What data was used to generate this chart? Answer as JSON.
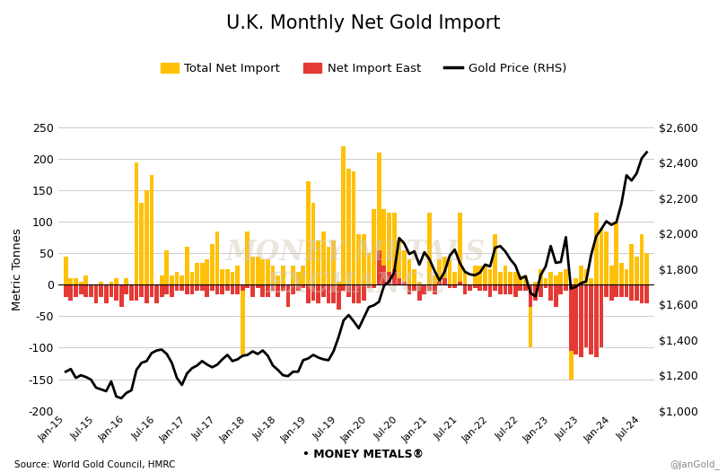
{
  "title": "U.K. Monthly Net Gold Import",
  "ylabel_left": "Metric Tonnes",
  "source_text": "Source: World Gold Council, HMRC",
  "watermark_text": "@JanGold_",
  "legend_labels": [
    "Total Net Import",
    "Net Import East",
    "Gold Price (RHS)"
  ],
  "bar_color_total": "#FFC107",
  "bar_color_east": "#E53935",
  "line_color": "#000000",
  "background_color": "#FFFFFF",
  "ylim_left": [
    -200,
    250
  ],
  "ylim_right": [
    1000,
    2600
  ],
  "yticks_left": [
    -200,
    -150,
    -100,
    -50,
    0,
    50,
    100,
    150,
    200,
    250
  ],
  "yticks_right": [
    1000,
    1200,
    1400,
    1600,
    1800,
    2000,
    2200,
    2400,
    2600
  ],
  "total_net_import": [
    45,
    10,
    10,
    5,
    15,
    -5,
    -5,
    5,
    -10,
    5,
    10,
    -5,
    10,
    -20,
    195,
    130,
    150,
    175,
    -10,
    15,
    55,
    15,
    20,
    15,
    60,
    20,
    35,
    35,
    40,
    65,
    85,
    25,
    25,
    20,
    30,
    -110,
    85,
    45,
    45,
    40,
    40,
    30,
    15,
    30,
    -30,
    30,
    20,
    30,
    165,
    130,
    70,
    85,
    60,
    70,
    5,
    220,
    185,
    180,
    80,
    80,
    50,
    120,
    210,
    120,
    115,
    115,
    70,
    55,
    40,
    25,
    5,
    -10,
    115,
    15,
    40,
    45,
    40,
    20,
    115,
    20,
    -10,
    30,
    30,
    30,
    25,
    80,
    20,
    30,
    20,
    20,
    15,
    15,
    -100,
    5,
    25,
    10,
    20,
    15,
    20,
    25,
    -150,
    10,
    30,
    25,
    10,
    115,
    90,
    85,
    30,
    100,
    35,
    25,
    65,
    45,
    80,
    50
  ],
  "east_net_import": [
    -20,
    -25,
    -20,
    -15,
    -20,
    -20,
    -30,
    -20,
    -30,
    -20,
    -25,
    -35,
    -15,
    -25,
    -25,
    -20,
    -30,
    -20,
    -30,
    -20,
    -15,
    -20,
    -10,
    -10,
    -15,
    -15,
    -10,
    -10,
    -20,
    -10,
    -15,
    -15,
    -10,
    -15,
    -15,
    -10,
    -5,
    -20,
    -5,
    -20,
    -20,
    -10,
    -20,
    -10,
    -35,
    -15,
    -10,
    -5,
    -30,
    -25,
    -30,
    -20,
    -30,
    -30,
    -40,
    -10,
    -20,
    -30,
    -30,
    -25,
    -5,
    -5,
    55,
    30,
    20,
    25,
    10,
    5,
    -15,
    -10,
    -25,
    -15,
    -10,
    -15,
    5,
    10,
    -5,
    -5,
    5,
    -15,
    -10,
    -5,
    -10,
    -10,
    -20,
    -10,
    -15,
    -15,
    -15,
    -20,
    -10,
    -10,
    -35,
    -25,
    -20,
    -5,
    -25,
    -35,
    -15,
    -10,
    -105,
    -110,
    -115,
    -100,
    -110,
    -115,
    -100,
    -20,
    -25,
    -20,
    -20,
    -20,
    -25,
    -25,
    -30,
    -30
  ],
  "gold_price": [
    1220,
    1235,
    1185,
    1200,
    1190,
    1175,
    1130,
    1120,
    1110,
    1165,
    1080,
    1070,
    1100,
    1115,
    1230,
    1270,
    1280,
    1325,
    1340,
    1345,
    1320,
    1270,
    1185,
    1145,
    1210,
    1240,
    1255,
    1280,
    1260,
    1245,
    1260,
    1290,
    1315,
    1280,
    1290,
    1310,
    1315,
    1335,
    1320,
    1340,
    1310,
    1255,
    1230,
    1200,
    1195,
    1220,
    1220,
    1285,
    1295,
    1315,
    1300,
    1290,
    1285,
    1335,
    1415,
    1510,
    1540,
    1505,
    1465,
    1525,
    1585,
    1595,
    1615,
    1705,
    1730,
    1780,
    1975,
    1945,
    1885,
    1900,
    1825,
    1895,
    1855,
    1790,
    1735,
    1785,
    1875,
    1910,
    1835,
    1785,
    1770,
    1765,
    1780,
    1825,
    1815,
    1920,
    1930,
    1900,
    1855,
    1820,
    1745,
    1760,
    1665,
    1645,
    1765,
    1815,
    1930,
    1835,
    1840,
    1980,
    1690,
    1700,
    1720,
    1730,
    1880,
    1985,
    2025,
    2070,
    2050,
    2065,
    2170,
    2330,
    2300,
    2340,
    2425,
    2460
  ],
  "xtick_labels": [
    "Jan-15",
    "Jul-15",
    "Jan-16",
    "Jul-16",
    "Jan-17",
    "Jul-17",
    "Jan-18",
    "Jul-18",
    "Jan-19",
    "Jul-19",
    "Jan-20",
    "Jul-20",
    "Jan-21",
    "Jul-21",
    "Jan-22",
    "Jul-22",
    "Jan-23",
    "Jul-23",
    "Jan-24",
    "Jul-24"
  ],
  "xtick_positions": [
    0,
    6,
    12,
    18,
    24,
    30,
    36,
    42,
    48,
    54,
    60,
    66,
    72,
    78,
    84,
    90,
    96,
    102,
    108,
    114
  ]
}
